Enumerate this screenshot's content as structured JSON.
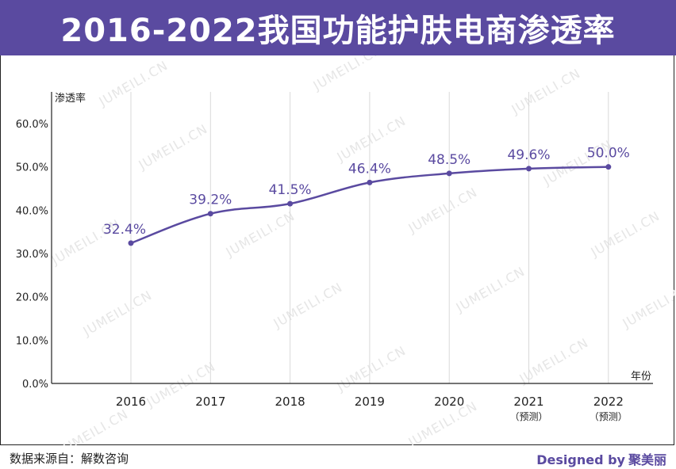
{
  "title": "2016-2022我国功能护肤电商渗透率",
  "watermark": "JUMEILI.CN",
  "colors": {
    "accent": "#5a4aa0",
    "line": "#5a4aa0",
    "grid": "#d9d9d9",
    "axis": "#222222",
    "label": "#5a4aa0"
  },
  "footer": {
    "source": "数据来源自：解数咨询",
    "designed_by": "Designed by",
    "brand": "聚美丽"
  },
  "chart_data": {
    "type": "line",
    "ylabel": "渗透率",
    "xlabel": "年份",
    "ylim": [
      0,
      60
    ],
    "yticks": [
      "0.0%",
      "10.0%",
      "20.0%",
      "30.0%",
      "40.0%",
      "50.0%",
      "60.0%"
    ],
    "categories": [
      "2016",
      "2017",
      "2018",
      "2019",
      "2020",
      "2021",
      "2022"
    ],
    "sublabels": [
      "",
      "",
      "",
      "",
      "",
      "（预测）",
      "（预测）"
    ],
    "values": [
      32.4,
      39.2,
      41.5,
      46.4,
      48.5,
      49.6,
      50.0
    ],
    "value_labels": [
      "32.4%",
      "39.2%",
      "41.5%",
      "46.4%",
      "48.5%",
      "49.6%",
      "50.0%"
    ],
    "grid": "vertical",
    "line_style": "smooth"
  }
}
